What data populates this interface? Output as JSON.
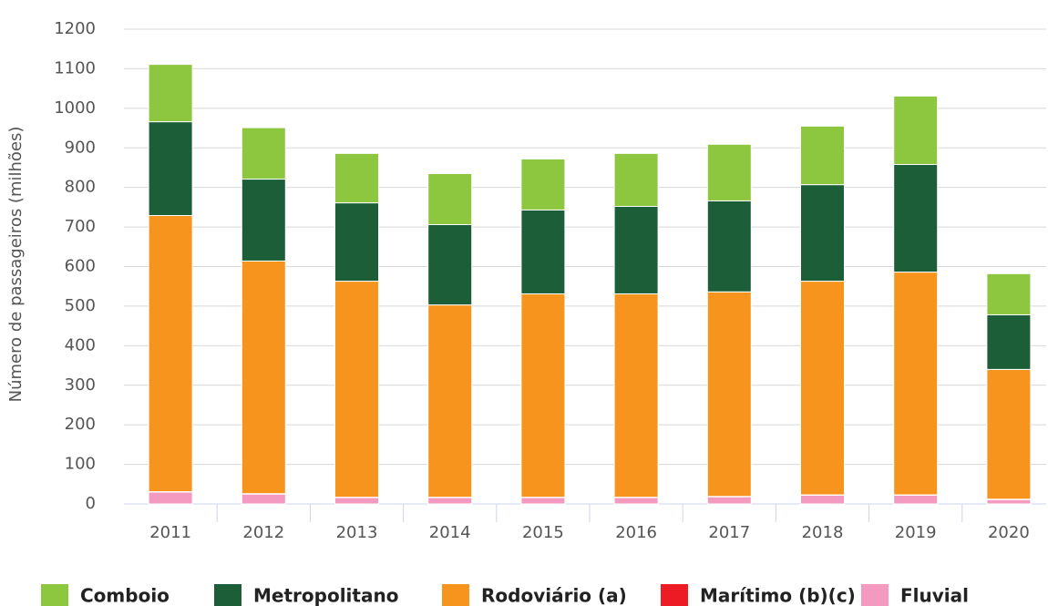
{
  "chart_data": {
    "type": "stacked-bar",
    "y_label": "Número de passageiros (milhões)",
    "categories": [
      "2011",
      "2012",
      "2013",
      "2014",
      "2015",
      "2016",
      "2017",
      "2018",
      "2019",
      "2020"
    ],
    "series": [
      {
        "name": "Comboio",
        "color": "#8dc63f",
        "values": [
          145,
          130,
          125,
          129,
          129,
          134,
          143,
          148,
          173,
          104
        ]
      },
      {
        "name": "Metropolitano",
        "color": "#1b5e37",
        "values": [
          237,
          207,
          198,
          203,
          212,
          221,
          230,
          244,
          272,
          138
        ]
      },
      {
        "name": "Rodoviário (a)",
        "color": "#f7941d",
        "values": [
          698,
          588,
          546,
          486,
          514,
          514,
          517,
          540,
          563,
          328
        ]
      },
      {
        "name": "Marítimo (b)(c)",
        "color": "#ed1c24",
        "values": [
          1,
          1,
          1,
          1,
          1,
          1,
          1,
          1,
          1,
          1
        ]
      },
      {
        "name": "Fluvial",
        "color": "#f49ac1",
        "values": [
          30,
          25,
          16,
          16,
          16,
          16,
          18,
          22,
          22,
          11
        ]
      }
    ],
    "ylim": [
      0,
      1200
    ],
    "yticks": [
      0,
      100,
      200,
      300,
      400,
      500,
      600,
      700,
      800,
      900,
      1000,
      1100,
      1200
    ],
    "grid": true
  }
}
